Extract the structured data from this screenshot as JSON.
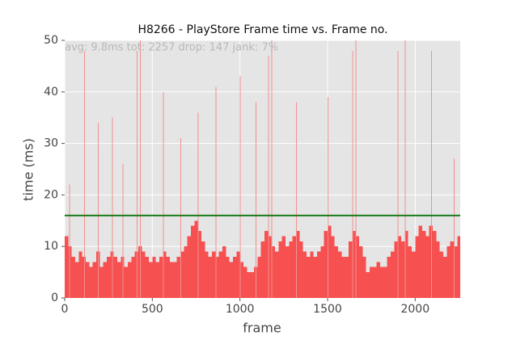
{
  "chart_data": {
    "type": "bar",
    "title": "H8266 - PlayStore Frame time vs. Frame no.",
    "annotation": "avg: 9.8ms tot: 2257 drop: 147 jank: 7%",
    "x_label": "frame",
    "y_label": "time (ms)",
    "xlim": [
      0,
      2257
    ],
    "xticks": [
      0,
      500,
      1000,
      1500,
      2000
    ],
    "ylim": [
      0,
      50
    ],
    "yticks": [
      0,
      10,
      20,
      30,
      40,
      50
    ],
    "grid": true,
    "threshold": 16,
    "threshold_color": "#1a7a1a",
    "series": [
      {
        "color": "#f65050",
        "x": [
          0,
          20,
          40,
          60,
          80,
          100,
          120,
          140,
          160,
          180,
          200,
          220,
          240,
          260,
          280,
          300,
          320,
          340,
          360,
          380,
          400,
          420,
          440,
          460,
          480,
          500,
          520,
          540,
          560,
          580,
          600,
          620,
          640,
          660,
          680,
          700,
          720,
          740,
          760,
          780,
          800,
          820,
          840,
          860,
          880,
          900,
          920,
          940,
          960,
          980,
          1000,
          1020,
          1040,
          1060,
          1080,
          1100,
          1120,
          1140,
          1160,
          1180,
          1200,
          1220,
          1240,
          1260,
          1280,
          1300,
          1320,
          1340,
          1360,
          1380,
          1400,
          1420,
          1440,
          1460,
          1480,
          1500,
          1520,
          1540,
          1560,
          1580,
          1600,
          1620,
          1640,
          1660,
          1680,
          1700,
          1720,
          1740,
          1760,
          1780,
          1800,
          1820,
          1840,
          1860,
          1880,
          1900,
          1920,
          1940,
          1960,
          1980,
          2000,
          2020,
          2040,
          2060,
          2080,
          2100,
          2120,
          2140,
          2160,
          2180,
          2200,
          2220,
          2240
        ],
        "values": [
          12,
          10,
          8,
          7,
          9,
          8,
          7,
          6,
          7,
          9,
          6,
          7,
          8,
          9,
          8,
          7,
          8,
          6,
          7,
          8,
          9,
          10,
          9,
          8,
          7,
          8,
          7,
          8,
          9,
          8,
          7,
          7,
          8,
          9,
          10,
          12,
          14,
          15,
          13,
          11,
          9,
          8,
          9,
          8,
          9,
          10,
          8,
          7,
          8,
          9,
          7,
          6,
          5,
          5,
          6,
          8,
          11,
          13,
          12,
          10,
          9,
          11,
          12,
          10,
          11,
          12,
          13,
          11,
          9,
          8,
          9,
          8,
          9,
          10,
          13,
          14,
          12,
          10,
          9,
          8,
          8,
          11,
          13,
          12,
          10,
          8,
          5,
          6,
          6,
          7,
          6,
          6,
          8,
          9,
          11,
          12,
          11,
          13,
          10,
          9,
          12,
          14,
          13,
          12,
          14,
          13,
          11,
          9,
          8,
          10,
          11,
          10,
          12
        ]
      },
      {
        "color": "#f29090",
        "x": [
          25,
          110,
          190,
          270,
          330,
          410,
          430,
          560,
          660,
          760,
          860,
          1000,
          1090,
          1160,
          1180,
          1320,
          1500,
          1640,
          1660,
          1900,
          1940,
          2090,
          2220
        ],
        "values": [
          22,
          48,
          34,
          35,
          26,
          48,
          50,
          40,
          31,
          36,
          41,
          43,
          38,
          47,
          50,
          38,
          39,
          48,
          50,
          48,
          50,
          48,
          27
        ]
      }
    ]
  }
}
